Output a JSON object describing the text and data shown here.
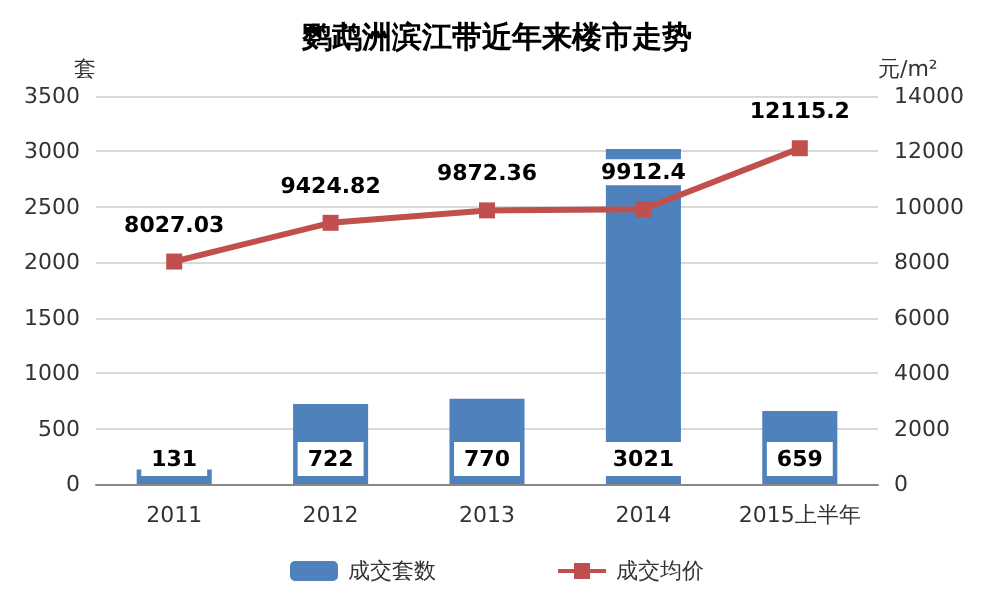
{
  "chart_data": {
    "type": "bar",
    "title": "鹦鹉洲滨江带近年来楼市走势",
    "ylabel": "套",
    "y2label": "元/m²",
    "categories": [
      "2011",
      "2012",
      "2013",
      "2014",
      "2015上半年"
    ],
    "series": [
      {
        "name": "成交套数",
        "color": "#4f81bd",
        "values": [
          131,
          722,
          770,
          3021,
          659
        ]
      },
      {
        "name": "成交均价",
        "type": "line",
        "axis": "y2",
        "color": "#c0504d",
        "values": [
          8027.03,
          9424.82,
          9872.36,
          9912.4,
          12115.2
        ]
      }
    ],
    "ylim": [
      0,
      3500
    ],
    "yticks": [
      0,
      500,
      1000,
      1500,
      2000,
      2500,
      3000,
      3500
    ],
    "y2lim": [
      0,
      14000
    ],
    "y2ticks": [
      0,
      2000,
      4000,
      6000,
      8000,
      10000,
      12000,
      14000
    ],
    "grid": "y",
    "legend": "bottom",
    "marker": "square",
    "data_labels": true
  }
}
